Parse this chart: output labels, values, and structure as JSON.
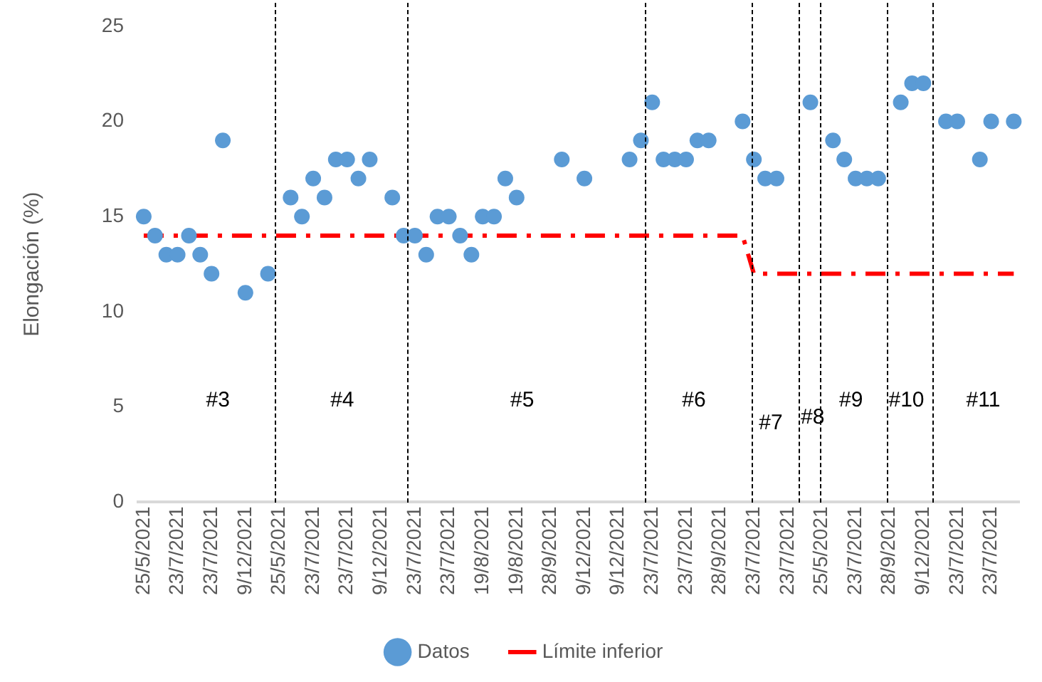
{
  "chart_data": {
    "type": "scatter",
    "ylabel": "Elongación (%)",
    "ylim": [
      0,
      25
    ],
    "yticks": [
      0,
      5,
      10,
      15,
      20,
      25
    ],
    "categories": [
      "25/5/2021",
      null,
      null,
      "23/7/2021",
      null,
      null,
      "23/7/2021",
      null,
      null,
      "9/12/2021",
      null,
      null,
      "25/5/2021",
      null,
      null,
      "23/7/2021",
      null,
      null,
      "23/7/2021",
      null,
      null,
      "9/12/2021",
      null,
      null,
      "23/7/2021",
      null,
      null,
      "23/7/2021",
      null,
      null,
      "19/8/2021",
      null,
      null,
      "19/8/2021",
      null,
      null,
      "28/9/2021",
      null,
      null,
      "9/12/2021",
      null,
      null,
      "9/12/2021",
      null,
      null,
      "23/7/2021",
      null,
      null,
      "23/7/2021",
      null,
      null,
      "28/9/2021",
      null,
      null,
      "23/7/2021",
      null,
      null,
      "23/7/2021",
      null,
      null,
      "25/5/2021",
      null,
      null,
      "23/7/2021",
      null,
      null,
      "28/9/2021",
      null,
      null,
      "9/12/2021",
      null,
      null,
      "23/7/2021",
      null,
      null,
      "23/7/2021",
      null,
      null
    ],
    "grid": false,
    "legend": "bottom",
    "marker": "circle",
    "series": [
      {
        "name": "Datos",
        "color": "#5b9bd5",
        "values": [
          15,
          14,
          13,
          13,
          14,
          13,
          12,
          19,
          null,
          11,
          null,
          12,
          null,
          16,
          15,
          17,
          16,
          18,
          18,
          17,
          18,
          null,
          16,
          14,
          14,
          13,
          15,
          15,
          14,
          13,
          15,
          15,
          17,
          16,
          null,
          null,
          null,
          18,
          null,
          17,
          null,
          null,
          null,
          18,
          19,
          21,
          18,
          18,
          18,
          19,
          19,
          null,
          null,
          20,
          18,
          17,
          17,
          null,
          null,
          21,
          null,
          19,
          18,
          17,
          17,
          17,
          null,
          21,
          22,
          22,
          null,
          20,
          20,
          null,
          18,
          20,
          null,
          20
        ]
      },
      {
        "name": "Límite inferior",
        "type": "line",
        "color": "#ff0000",
        "marker": "none",
        "line_style": "dashed",
        "values": [
          14,
          14,
          14,
          14,
          14,
          14,
          14,
          14,
          14,
          14,
          14,
          14,
          14,
          14,
          14,
          14,
          14,
          14,
          14,
          14,
          14,
          14,
          14,
          14,
          14,
          14,
          14,
          14,
          14,
          14,
          14,
          14,
          14,
          14,
          14,
          14,
          14,
          14,
          14,
          14,
          14,
          14,
          14,
          14,
          14,
          14,
          14,
          14,
          14,
          14,
          14,
          14,
          14,
          14,
          12,
          12,
          12,
          12,
          12,
          12,
          12,
          12,
          12,
          12,
          12,
          12,
          12,
          12,
          12,
          12,
          12,
          12,
          12,
          12,
          12,
          12,
          12,
          12
        ]
      }
    ],
    "annotations": [
      "#3",
      "#4",
      "#5",
      "#6",
      "#7",
      "#8",
      "#9",
      "#10",
      "#11"
    ]
  }
}
